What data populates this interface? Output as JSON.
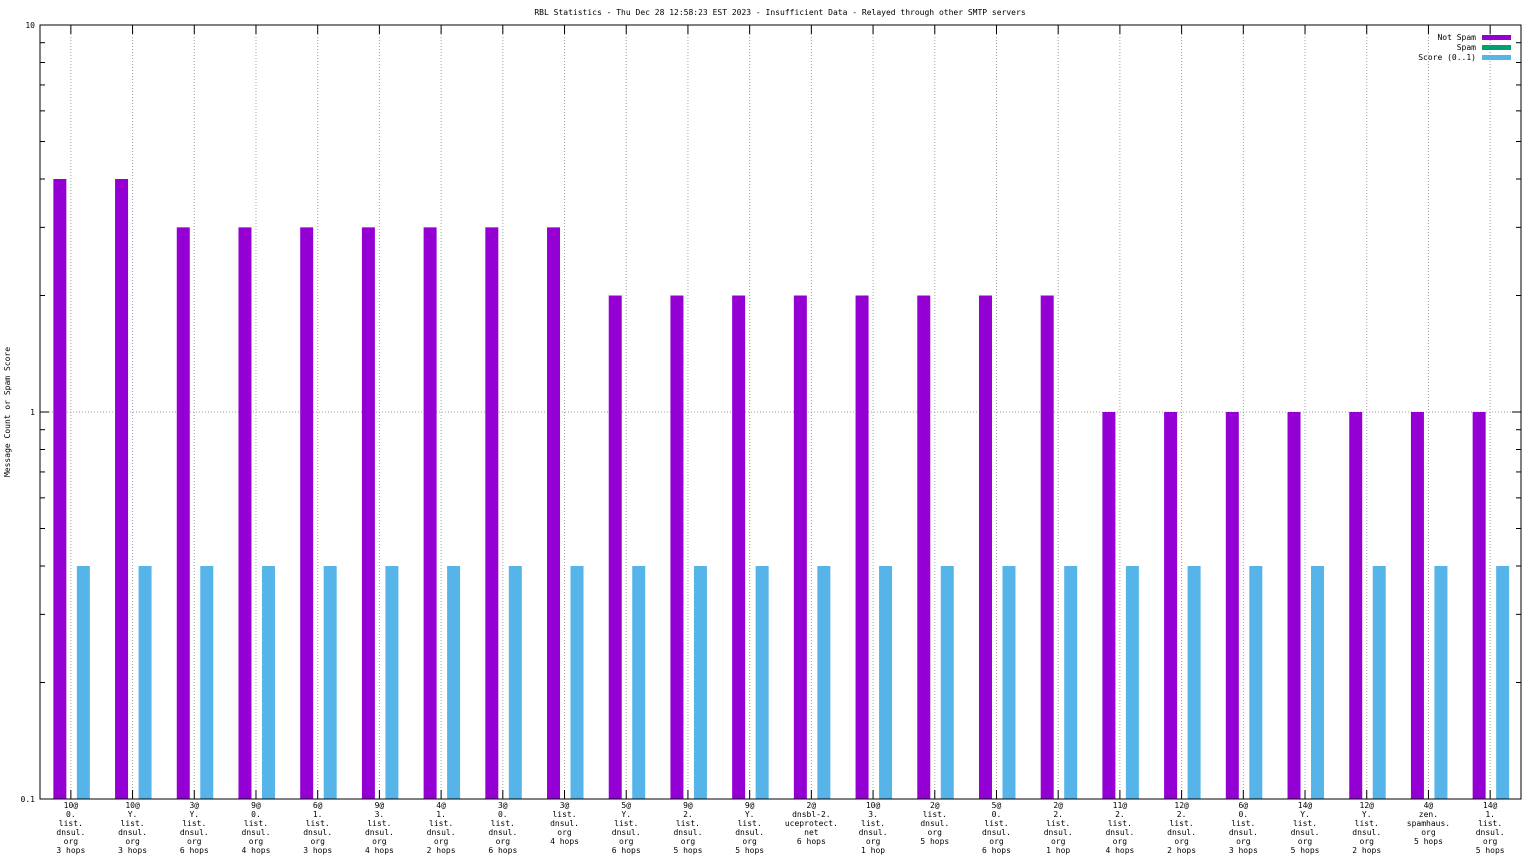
{
  "chart_data": {
    "type": "bar",
    "title": "RBL Statistics - Thu Dec 28 12:58:23 EST 2023 - Insufficient Data - Relayed through other SMTP servers",
    "ylabel": "Message Count or Spam Score",
    "xlabel": "",
    "yscale": "log",
    "ylim": [
      0.1,
      10
    ],
    "ytick_labels": [
      "0.1",
      "1",
      "10"
    ],
    "grid": true,
    "legend_position": "top-right",
    "categories": [
      [
        "10@",
        "0.",
        "list.",
        "dnsul.",
        "org",
        "3 hops"
      ],
      [
        "10@",
        "Y.",
        "list.",
        "dnsul.",
        "org",
        "3 hops"
      ],
      [
        "3@",
        "Y.",
        "list.",
        "dnsul.",
        "org",
        "6 hops"
      ],
      [
        "9@",
        "0.",
        "list.",
        "dnsul.",
        "org",
        "4 hops"
      ],
      [
        "6@",
        "1.",
        "list.",
        "dnsul.",
        "org",
        "3 hops"
      ],
      [
        "9@",
        "3.",
        "list.",
        "dnsul.",
        "org",
        "4 hops"
      ],
      [
        "4@",
        "1.",
        "list.",
        "dnsul.",
        "org",
        "2 hops"
      ],
      [
        "3@",
        "0.",
        "list.",
        "dnsul.",
        "org",
        "6 hops"
      ],
      [
        "3@",
        "list.",
        "dnsul.",
        "org",
        "4 hops"
      ],
      [
        "5@",
        "Y.",
        "list.",
        "dnsul.",
        "org",
        "6 hops"
      ],
      [
        "9@",
        "2.",
        "list.",
        "dnsul.",
        "org",
        "5 hops"
      ],
      [
        "9@",
        "Y.",
        "list.",
        "dnsul.",
        "org",
        "5 hops"
      ],
      [
        "2@",
        "dnsbl-2.",
        "uceprotect.",
        "net",
        "6 hops"
      ],
      [
        "10@",
        "3.",
        "list.",
        "dnsul.",
        "org",
        "1 hop"
      ],
      [
        "2@",
        "list.",
        "dnsul.",
        "org",
        "5 hops"
      ],
      [
        "5@",
        "0.",
        "list.",
        "dnsul.",
        "org",
        "6 hops"
      ],
      [
        "2@",
        "2.",
        "list.",
        "dnsul.",
        "org",
        "1 hop"
      ],
      [
        "11@",
        "2.",
        "list.",
        "dnsul.",
        "org",
        "4 hops"
      ],
      [
        "12@",
        "2.",
        "list.",
        "dnsul.",
        "org",
        "2 hops"
      ],
      [
        "6@",
        "0.",
        "list.",
        "dnsul.",
        "org",
        "3 hops"
      ],
      [
        "14@",
        "Y.",
        "list.",
        "dnsul.",
        "org",
        "5 hops"
      ],
      [
        "12@",
        "Y.",
        "list.",
        "dnsul.",
        "org",
        "2 hops"
      ],
      [
        "4@",
        "zen.",
        "spamhaus.",
        "org",
        "5 hops"
      ],
      [
        "14@",
        "1.",
        "list.",
        "dnsul.",
        "org",
        "5 hops"
      ]
    ],
    "series": [
      {
        "name": "Not Spam",
        "color": "#9400d3",
        "values": [
          4,
          4,
          3,
          3,
          3,
          3,
          3,
          3,
          3,
          2,
          2,
          2,
          2,
          2,
          2,
          2,
          2,
          1,
          1,
          1,
          1,
          1,
          1,
          1
        ]
      },
      {
        "name": "Spam",
        "color": "#009e73",
        "values": [
          0,
          0,
          0,
          0,
          0,
          0,
          0,
          0,
          0,
          0,
          0,
          0,
          0,
          0,
          0,
          0,
          0,
          0,
          0,
          0,
          0,
          0,
          0,
          0
        ]
      },
      {
        "name": "Score (0..1)",
        "color": "#56b4e9",
        "values": [
          0.4,
          0.4,
          0.4,
          0.4,
          0.4,
          0.4,
          0.4,
          0.4,
          0.4,
          0.4,
          0.4,
          0.4,
          0.4,
          0.4,
          0.4,
          0.4,
          0.4,
          0.4,
          0.4,
          0.4,
          0.4,
          0.4,
          0.4,
          0.4
        ]
      }
    ]
  }
}
